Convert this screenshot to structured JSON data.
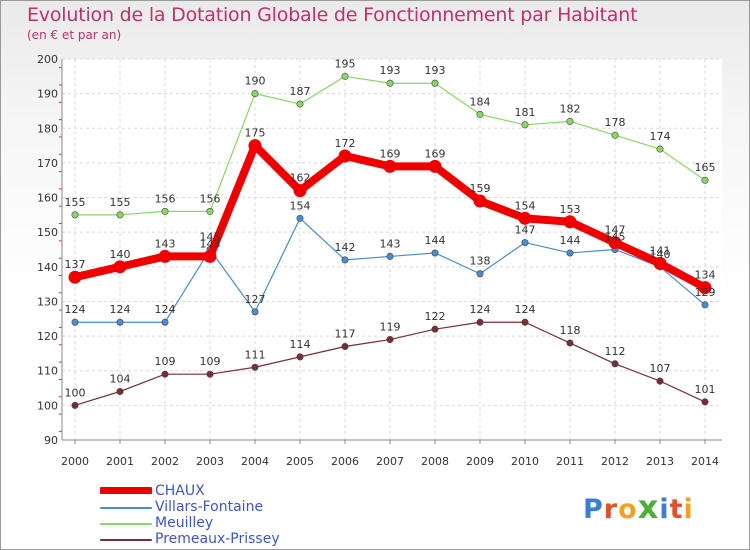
{
  "chart_data": {
    "type": "line",
    "title": "Evolution de la Dotation Globale de Fonctionnement par Habitant",
    "subtitle": "(en € et par an)",
    "xlabel": "",
    "ylabel": "",
    "categories": [
      "2000",
      "2001",
      "2002",
      "2003",
      "2004",
      "2005",
      "2006",
      "2007",
      "2008",
      "2009",
      "2010",
      "2011",
      "2012",
      "2013",
      "2014"
    ],
    "ylim": [
      90,
      200
    ],
    "yticks": [
      90,
      100,
      110,
      120,
      130,
      140,
      150,
      160,
      170,
      180,
      190,
      200
    ],
    "grid": true,
    "legend_position": "bottom-left",
    "series": [
      {
        "name": "CHAUX",
        "color": "#ee0000",
        "values": [
          137,
          140,
          143,
          143,
          175,
          162,
          172,
          169,
          169,
          159,
          154,
          153,
          147,
          141,
          134
        ]
      },
      {
        "name": "Villars-Fontaine",
        "color": "#4b8cc9",
        "values": [
          124,
          124,
          124,
          145,
          127,
          154,
          142,
          143,
          144,
          138,
          147,
          144,
          145,
          140,
          129
        ]
      },
      {
        "name": "Meuilley",
        "color": "#88d868",
        "values": [
          155,
          155,
          156,
          156,
          190,
          187,
          195,
          193,
          193,
          184,
          181,
          182,
          178,
          174,
          165
        ]
      },
      {
        "name": "Premeaux-Prissey",
        "color": "#7a2d34",
        "values": [
          100,
          104,
          109,
          109,
          111,
          114,
          117,
          119,
          122,
          124,
          124,
          118,
          112,
          107,
          101
        ]
      }
    ]
  },
  "logo": {
    "text": "Proxiti"
  }
}
